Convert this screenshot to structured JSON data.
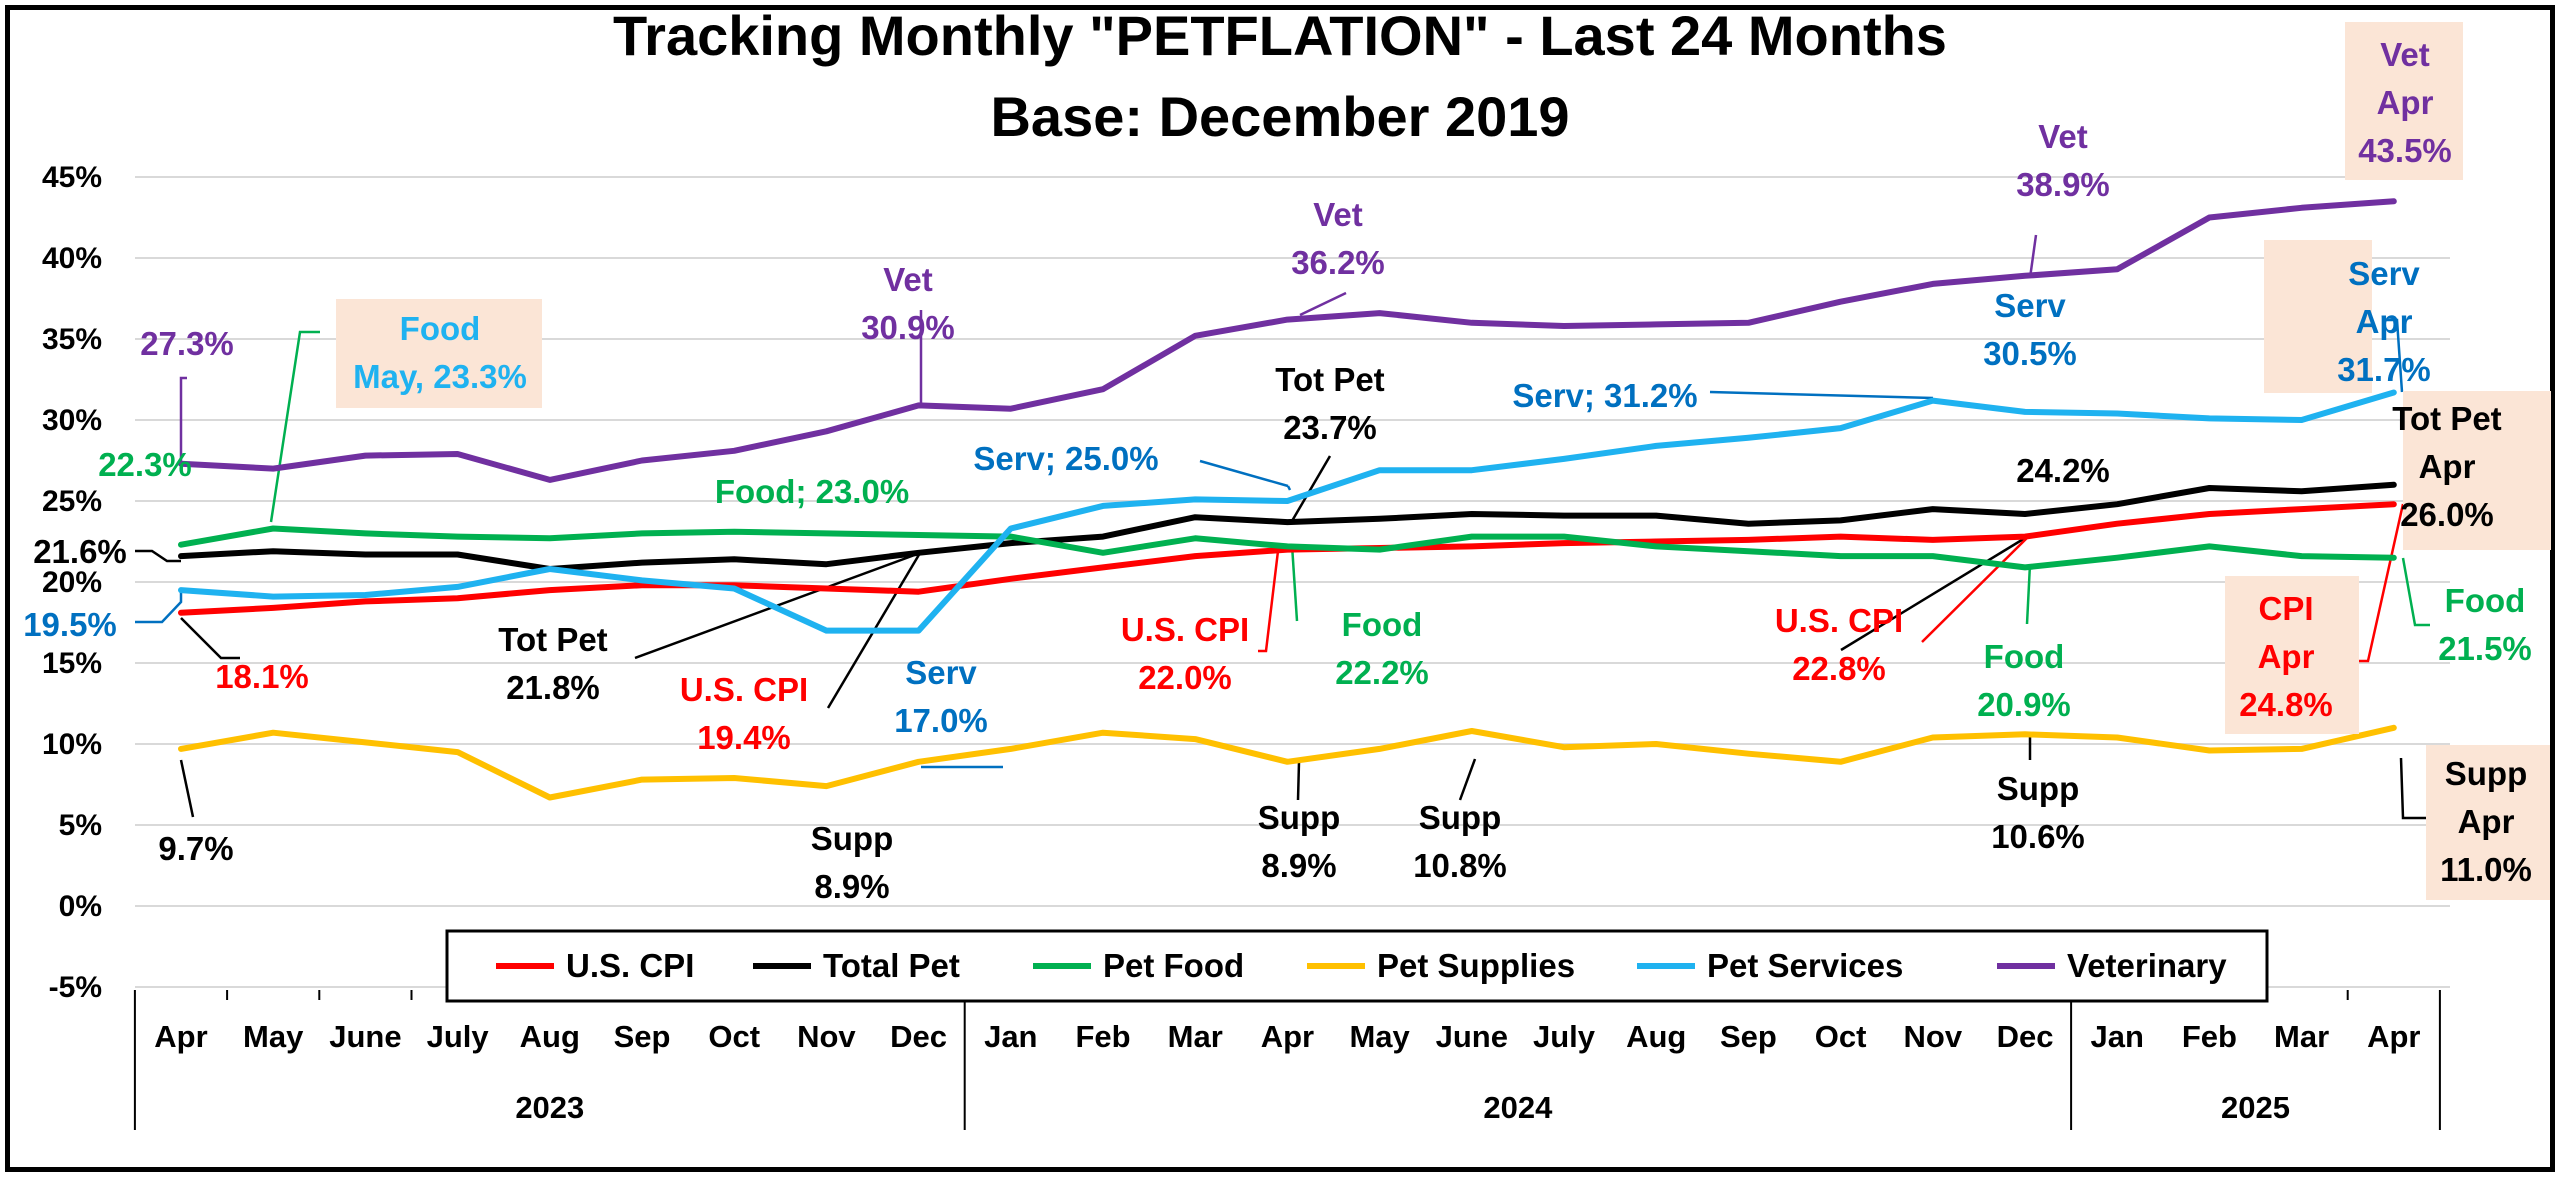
{
  "chart_data": {
    "type": "line",
    "title_lines": [
      "Tracking Monthly \"PETFLATION\" - Last 24 Months",
      "Base: December 2019"
    ],
    "months": [
      "Apr",
      "May",
      "June",
      "July",
      "Aug",
      "Sep",
      "Oct",
      "Nov",
      "Dec",
      "Jan",
      "Feb",
      "Mar",
      "Apr",
      "May",
      "June",
      "July",
      "Aug",
      "Sep",
      "Oct",
      "Nov",
      "Dec",
      "Jan",
      "Feb",
      "Mar",
      "Apr"
    ],
    "years": [
      {
        "label": "2023",
        "start": 0,
        "end": 8
      },
      {
        "label": "2024",
        "start": 9,
        "end": 20
      },
      {
        "label": "2025",
        "start": 21,
        "end": 24
      }
    ],
    "y_ticks": [
      "-5%",
      "0%",
      "5%",
      "10%",
      "15%",
      "20%",
      "25%",
      "30%",
      "35%",
      "40%",
      "45%"
    ],
    "ylim": [
      -5,
      47
    ],
    "grid": true,
    "legend_position": "bottom",
    "series": [
      {
        "name": "U.S. CPI",
        "color": "#ff0000",
        "values": [
          18.1,
          18.4,
          18.8,
          19.0,
          19.5,
          19.8,
          19.8,
          19.6,
          19.4,
          20.2,
          20.9,
          21.6,
          22.0,
          22.1,
          22.2,
          22.4,
          22.5,
          22.6,
          22.8,
          22.6,
          22.8,
          23.6,
          24.2,
          24.5,
          24.8
        ]
      },
      {
        "name": "Total Pet",
        "color": "#000000",
        "values": [
          21.6,
          21.9,
          21.7,
          21.7,
          20.8,
          21.2,
          21.4,
          21.1,
          21.8,
          22.4,
          22.8,
          24.0,
          23.7,
          23.9,
          24.2,
          24.1,
          24.1,
          23.6,
          23.8,
          24.5,
          24.2,
          24.8,
          25.8,
          25.6,
          26.0
        ]
      },
      {
        "name": "Pet Food",
        "color": "#00b050",
        "values": [
          22.3,
          23.3,
          23.0,
          22.8,
          22.7,
          23.0,
          23.1,
          23.0,
          22.9,
          22.8,
          21.8,
          22.7,
          22.2,
          22.0,
          22.8,
          22.8,
          22.2,
          21.9,
          21.6,
          21.6,
          20.9,
          21.5,
          22.2,
          21.6,
          21.5
        ]
      },
      {
        "name": "Pet Supplies",
        "color": "#ffc000",
        "values": [
          9.7,
          10.7,
          10.1,
          9.5,
          6.7,
          7.8,
          7.9,
          7.4,
          8.9,
          9.7,
          10.7,
          10.3,
          8.9,
          9.7,
          10.8,
          9.8,
          10.0,
          9.4,
          8.9,
          10.4,
          10.6,
          10.4,
          9.6,
          9.7,
          11.0
        ]
      },
      {
        "name": "Pet Services",
        "color": "#1fb2f0",
        "values": [
          19.5,
          19.1,
          19.2,
          19.7,
          20.8,
          20.1,
          19.6,
          17.0,
          17.0,
          23.3,
          24.7,
          25.1,
          25.0,
          26.9,
          26.9,
          27.6,
          28.4,
          28.9,
          29.5,
          31.2,
          30.5,
          30.4,
          30.1,
          30.0,
          31.7
        ]
      },
      {
        "name": "Veterinary",
        "color": "#7030a0",
        "values": [
          27.3,
          27.0,
          27.8,
          27.9,
          26.3,
          27.5,
          28.1,
          29.3,
          30.9,
          30.7,
          31.9,
          35.2,
          36.2,
          36.6,
          36.0,
          35.8,
          35.9,
          36.0,
          37.3,
          38.4,
          38.9,
          39.3,
          42.5,
          43.1,
          43.5
        ]
      }
    ],
    "annotations": [
      {
        "lines": [
          "27.3%"
        ],
        "color": "#7030a0"
      },
      {
        "lines": [
          "21.6%"
        ],
        "color": "#000000"
      },
      {
        "lines": [
          "22.3%"
        ],
        "color": "#00b050"
      },
      {
        "lines": [
          "19.5%"
        ],
        "color": "#0070c0"
      },
      {
        "lines": [
          "18.1%"
        ],
        "color": "#ff0000"
      },
      {
        "lines": [
          "9.7%"
        ],
        "color": "#000000"
      },
      {
        "lines": [
          "Food",
          "May, 23.3%"
        ],
        "color": "#1fb2f0",
        "box": true
      },
      {
        "lines": [
          "Food; 23.0%"
        ],
        "color": "#00b050"
      },
      {
        "lines": [
          "Vet",
          "30.9%"
        ],
        "color": "#7030a0"
      },
      {
        "lines": [
          "Tot Pet",
          "21.8%"
        ],
        "color": "#000000"
      },
      {
        "lines": [
          "U.S. CPI",
          "19.4%"
        ],
        "color": "#ff0000"
      },
      {
        "lines": [
          "Serv",
          "17.0%"
        ],
        "color": "#0070c0"
      },
      {
        "lines": [
          "Supp",
          "8.9%"
        ],
        "color": "#000000"
      },
      {
        "lines": [
          "Serv; 25.0%"
        ],
        "color": "#0070c0"
      },
      {
        "lines": [
          "Vet",
          "36.2%"
        ],
        "color": "#7030a0"
      },
      {
        "lines": [
          "Tot Pet",
          "23.7%"
        ],
        "color": "#000000"
      },
      {
        "lines": [
          "U.S. CPI",
          "22.0%"
        ],
        "color": "#ff0000"
      },
      {
        "lines": [
          "Food",
          "22.2%"
        ],
        "color": "#00b050"
      },
      {
        "lines": [
          "Supp",
          "8.9%"
        ],
        "color": "#000000"
      },
      {
        "lines": [
          "Supp",
          "10.8%"
        ],
        "color": "#000000"
      },
      {
        "lines": [
          "Serv; 31.2%"
        ],
        "color": "#0070c0"
      },
      {
        "lines": [
          "Vet",
          "38.9%"
        ],
        "color": "#7030a0"
      },
      {
        "lines": [
          "Serv",
          "30.5%"
        ],
        "color": "#0070c0"
      },
      {
        "lines": [
          "24.2%"
        ],
        "color": "#000000"
      },
      {
        "lines": [
          "U.S. CPI",
          "22.8%"
        ],
        "color": "#ff0000"
      },
      {
        "lines": [
          "Food",
          "20.9%"
        ],
        "color": "#00b050"
      },
      {
        "lines": [
          "Supp",
          "10.6%"
        ],
        "color": "#000000"
      },
      {
        "lines": [
          "Vet",
          "Apr",
          "43.5%"
        ],
        "color": "#7030a0",
        "box": true
      },
      {
        "lines": [
          "Serv",
          "Apr",
          "31.7%"
        ],
        "color": "#0070c0",
        "box": true
      },
      {
        "lines": [
          "Tot Pet",
          "Apr",
          "26.0%"
        ],
        "color": "#000000",
        "box": true
      },
      {
        "lines": [
          "Food",
          "21.5%"
        ],
        "color": "#00b050"
      },
      {
        "lines": [
          "CPI",
          "Apr",
          "24.8%"
        ],
        "color": "#ff0000",
        "box": true
      },
      {
        "lines": [
          "Supp",
          "Apr",
          "11.0%"
        ],
        "color": "#000000",
        "box": true
      }
    ]
  }
}
